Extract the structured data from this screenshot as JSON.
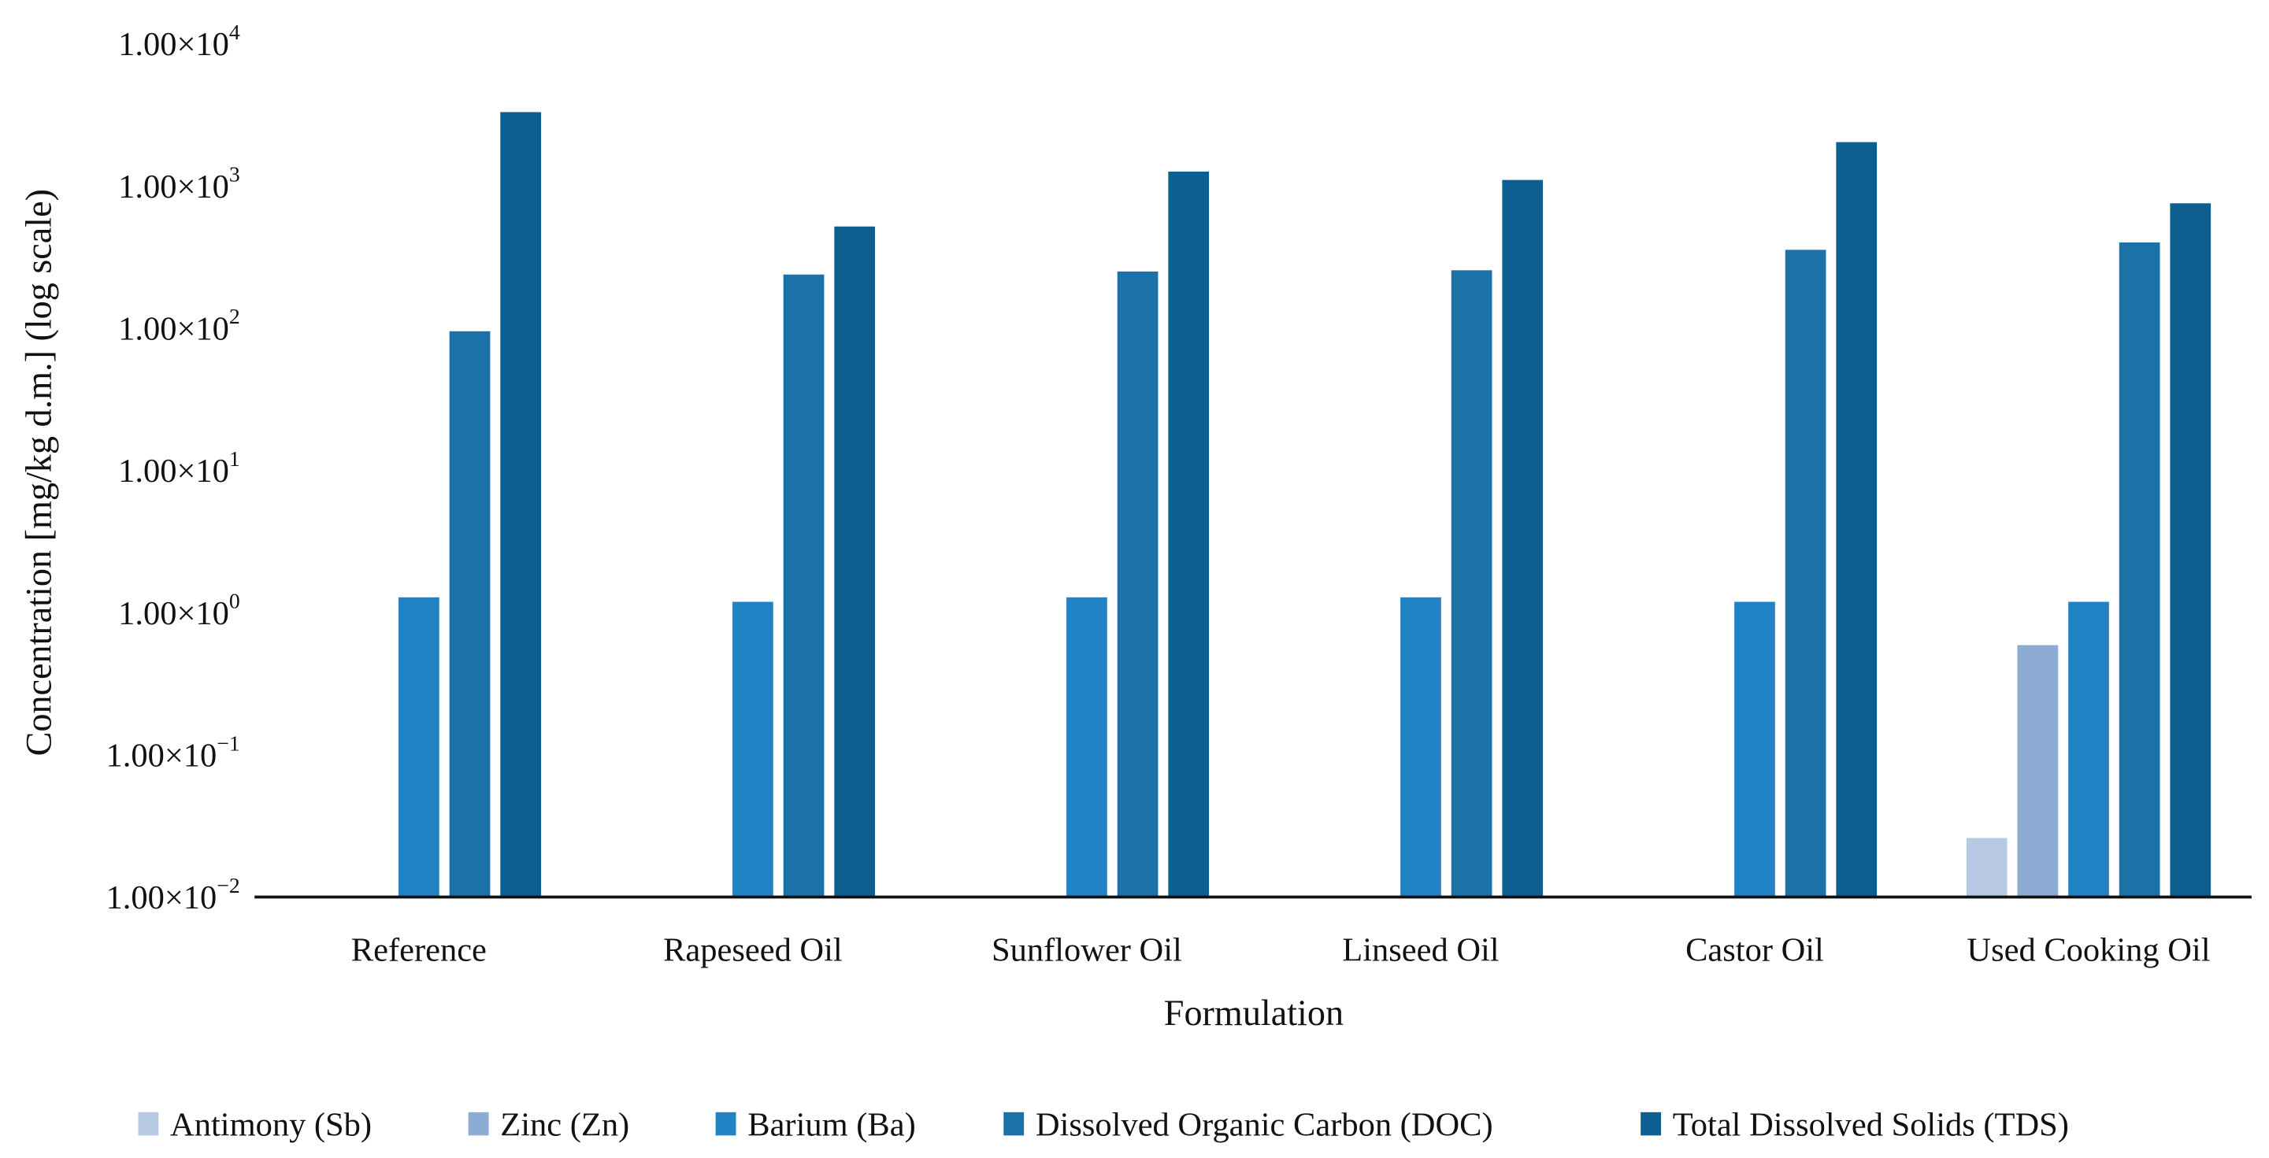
{
  "chart_data": {
    "type": "bar",
    "title": "",
    "xlabel": "Formulation",
    "ylabel": "Concentration [mg/kg d.m.] (log scale)",
    "yscale": "log",
    "ylim": [
      0.01,
      10000
    ],
    "grid": false,
    "legend_position": "bottom",
    "yticks": [
      {
        "mant": "1.00×10",
        "exp": "−2",
        "value": 0.01
      },
      {
        "mant": "1.00×10",
        "exp": "−1",
        "value": 0.1
      },
      {
        "mant": "1.00×10",
        "exp": "0",
        "value": 1
      },
      {
        "mant": "1.00×10",
        "exp": "1",
        "value": 10
      },
      {
        "mant": "1.00×10",
        "exp": "2",
        "value": 100
      },
      {
        "mant": "1.00×10",
        "exp": "3",
        "value": 1000
      },
      {
        "mant": "1.00×10",
        "exp": "4",
        "value": 10000
      }
    ],
    "categories": [
      "Reference",
      "Rapeseed Oil",
      "Sunflower Oil",
      "Linseed Oil",
      "Castor Oil",
      "Used Cooking Oil"
    ],
    "series": [
      {
        "name": "Antimony (Sb)",
        "color": "#b8c9e3",
        "values": [
          null,
          null,
          null,
          null,
          null,
          0.026
        ]
      },
      {
        "name": "Zinc (Zn)",
        "color": "#8cacd4",
        "values": [
          null,
          null,
          null,
          null,
          null,
          0.59
        ]
      },
      {
        "name": "Barium (Ba)",
        "color": "#2183c3",
        "values": [
          1.28,
          1.19,
          1.28,
          1.28,
          1.19,
          1.19
        ]
      },
      {
        "name": "Dissolved Organic Carbon (DOC)",
        "color": "#1a72a9",
        "values": [
          95,
          238,
          250,
          255,
          355,
          400
        ]
      },
      {
        "name": "Total Dissolved Solids (TDS)",
        "color": "#0e5f91",
        "values": [
          3300,
          518,
          1260,
          1100,
          2030,
          754
        ]
      }
    ]
  }
}
